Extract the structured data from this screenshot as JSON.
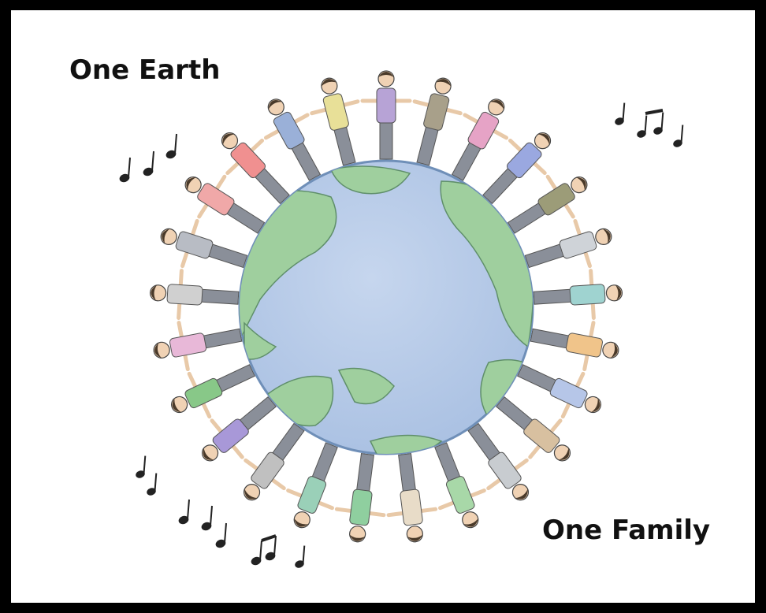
{
  "captions": [
    "One Earth",
    "One Family"
  ]
}
